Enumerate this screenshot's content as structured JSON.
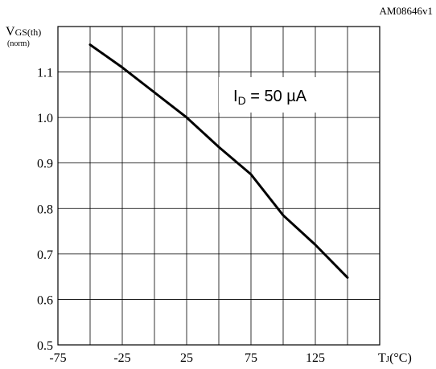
{
  "figure_id": "AM08646v1",
  "chart_data": {
    "type": "line",
    "ylabel_main": "V",
    "ylabel_sub": "GS(th)",
    "ylabel_norm": "(norm)",
    "xlabel_main": "T",
    "xlabel_sub": "J",
    "xlabel_unit": "(°C)",
    "annotation_main": "I",
    "annotation_sub": "D",
    "annotation_rest": " = 50 µA",
    "xlim": [
      -75,
      175
    ],
    "ylim": [
      0.5,
      1.2
    ],
    "xticks": [
      -75,
      -50,
      -25,
      0,
      25,
      50,
      75,
      100,
      125,
      150,
      175
    ],
    "xtick_labels": [
      "-75",
      "",
      "-25",
      "",
      "25",
      "",
      "75",
      "",
      "125",
      "",
      ""
    ],
    "yticks": [
      0.5,
      0.6,
      0.7,
      0.8,
      0.9,
      1.0,
      1.1,
      1.2
    ],
    "ytick_labels": [
      "0.5",
      "0.6",
      "0.7",
      "0.8",
      "0.9",
      "1.0",
      "1.1",
      ""
    ],
    "grid": true,
    "series": [
      {
        "x": [
          -50,
          -25,
          0,
          25,
          50,
          75,
          100,
          125,
          150
        ],
        "y": [
          1.16,
          1.11,
          1.055,
          1.0,
          0.935,
          0.875,
          0.785,
          0.72,
          0.648
        ]
      }
    ]
  }
}
